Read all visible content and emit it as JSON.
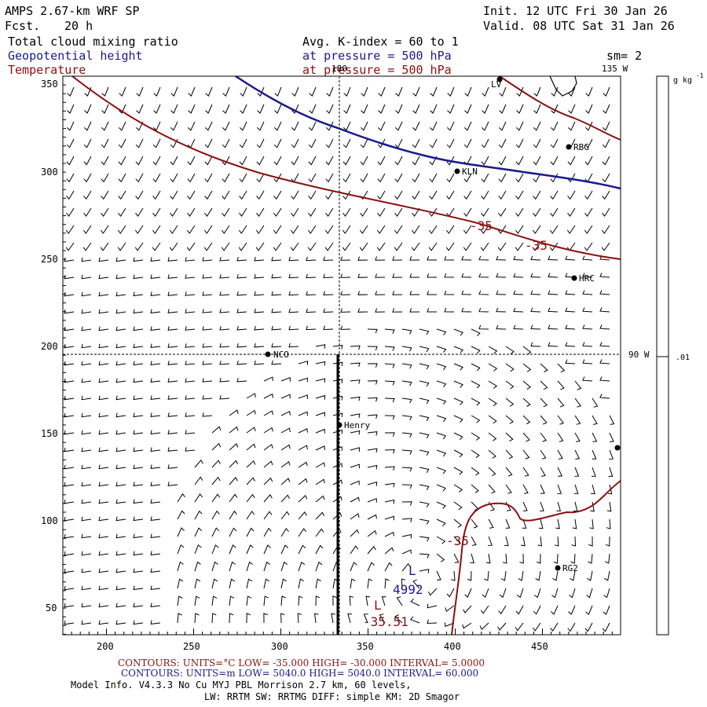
{
  "header": {
    "model": "AMPS 2.67-km WRF SP",
    "forecast_label": "Fcst.",
    "forecast_hours": "20 h",
    "init": "Init. 12 UTC Fri 30 Jan 26",
    "valid": "Valid. 08 UTC Sat 31 Jan 26",
    "field1": "Total cloud mixing ratio",
    "field2": "Geopotential height",
    "field3": "Temperature",
    "avg": "Avg. K-index =  60 to    1",
    "pressure1": "at pressure =  500 hPa",
    "pressure2": "at pressure =  500 hPa",
    "smoothing": "sm= 2"
  },
  "colors": {
    "height": "#1a1a8c",
    "temperature": "#8b1010",
    "barbs": "#000000"
  },
  "map": {
    "x_ticks": [
      "200",
      "250",
      "300",
      "350",
      "400",
      "450"
    ],
    "y_ticks": [
      "350",
      "300",
      "250",
      "200",
      "150",
      "100",
      "50"
    ],
    "lon_180": "180",
    "lon_135w": "135 W",
    "lon_90w": "90 W",
    "stations": [
      {
        "name": "LV"
      },
      {
        "name": "RBG"
      },
      {
        "name": "KLN"
      },
      {
        "name": "HRC"
      },
      {
        "name": "NCO"
      },
      {
        "name": "Henry"
      },
      {
        "name": "RG2"
      },
      {
        "name": ""
      }
    ],
    "contour_labels": {
      "temp_top_1": "-35",
      "temp_top_2": "-35",
      "temp_bottom": "-35",
      "low_marker_height": "L",
      "low_value_height": "4992",
      "low_marker_temp": "L",
      "low_value_temp": "-35.51"
    }
  },
  "colorbar": {
    "unit": "g kg",
    "unit_exp": "-1",
    "tick": ".01"
  },
  "footer": {
    "temp_contours": "CONTOURS:  UNITS=°C  LOW= -35.000        HIGH= -30.000          INTERVAL=    5.0000",
    "height_contours": "CONTOURS:  UNITS=m  LOW=  5040.0        HIGH=  5040.0          INTERVAL=    60.000",
    "model_info": "Model Info. V4.3.3    No Cu   MYJ PBL   Morrison             2.7 km,  60 levels,",
    "physics": "LW: RRTM SW: RRTMG    DIFF: simple KM: 2D Smagor"
  }
}
